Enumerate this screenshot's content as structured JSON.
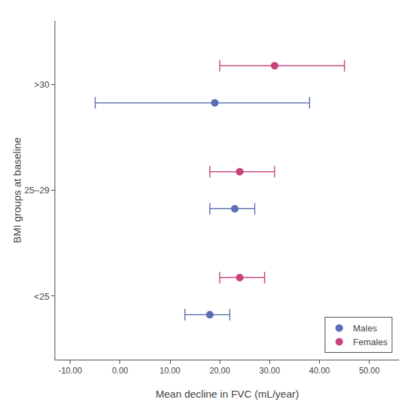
{
  "chart_data": {
    "type": "dot",
    "categories": [
      ">30",
      "25–29",
      "<25"
    ],
    "series": [
      {
        "name": "Males",
        "color": "#5b6db5",
        "marker": "circle",
        "values": [
          19.0,
          23.0,
          18.0
        ],
        "ci_low": [
          -5.0,
          18.0,
          13.0
        ],
        "ci_high": [
          38.0,
          27.0,
          22.0
        ]
      },
      {
        "name": "Females",
        "color": "#c8427a",
        "marker": "circle",
        "values": [
          31.0,
          24.0,
          24.0
        ],
        "ci_low": [
          20.0,
          18.0,
          20.0
        ],
        "ci_high": [
          45.0,
          31.0,
          29.0
        ]
      }
    ],
    "xlabel": "Mean decline in FVC (mL/year)",
    "ylabel": "BMI groups at baseline",
    "xlim": [
      -13,
      56
    ],
    "xticks": [
      {
        "value": -10,
        "label": "-10.00"
      },
      {
        "value": 0,
        "label": "0.00"
      },
      {
        "value": 10,
        "label": "10.00"
      },
      {
        "value": 20,
        "label": "20.00"
      },
      {
        "value": 30,
        "label": "30.00"
      },
      {
        "value": 40,
        "label": "40.00"
      },
      {
        "value": 50,
        "label": "50.00"
      }
    ],
    "grid": false,
    "legend": "lower right"
  }
}
